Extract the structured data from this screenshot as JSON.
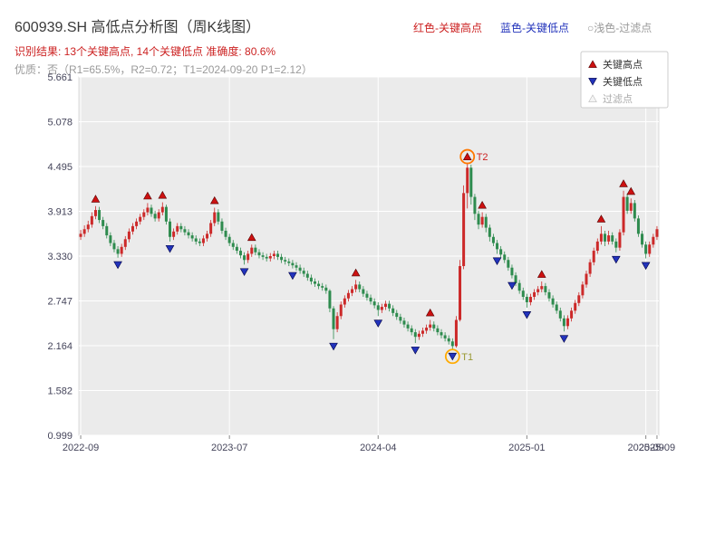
{
  "header": {
    "title": "600939.SH 高低点分析图（周K线图）",
    "subtitle": "识别结果: 13个关键高点, 14个关键低点  准确度: 80.6%",
    "quality_line": "优质：否（R1=65.5%，R2=0.72；T1=2024-09-20 P1=2.12）",
    "legend": {
      "high": "红色-关键高点",
      "low": "蓝色-关键低点",
      "filtered": "○浅色-过滤点"
    }
  },
  "colors": {
    "up_candle": "#cc2929",
    "down_candle": "#2e8b4e",
    "key_high": "#cc1111",
    "key_low": "#2233bb",
    "filtered": "#f5f5f5",
    "plot_bg": "#ebebeb",
    "grid": "#ffffff",
    "axis_text": "#44445a",
    "ring_t1": "#ffaa00",
    "ring_t2": "#ff7700"
  },
  "chart_data": {
    "type": "candlestick",
    "title": "600939.SH 高低点分析图（周K线图）",
    "ylim": [
      0.999,
      5.661
    ],
    "grid": true,
    "y_ticks": [
      "0.999",
      "1.582",
      "2.164",
      "2.747",
      "3.330",
      "3.913",
      "4.495",
      "5.078",
      "5.661"
    ],
    "x_ticks": [
      {
        "week": 0,
        "label": "2022-09"
      },
      {
        "week": 40,
        "label": "2023-07"
      },
      {
        "week": 80,
        "label": "2024-04"
      },
      {
        "week": 120,
        "label": "2025-01"
      },
      {
        "week": 152,
        "label": "2025-09"
      },
      {
        "week": 155,
        "label": "2025-09"
      }
    ],
    "legend_items": [
      {
        "label": "关键高点",
        "type": "high"
      },
      {
        "label": "关键低点",
        "type": "low"
      },
      {
        "label": "过滤点",
        "type": "filtered"
      }
    ],
    "candles": [
      [
        3.58,
        3.67,
        3.54,
        3.62
      ],
      [
        3.62,
        3.73,
        3.58,
        3.68
      ],
      [
        3.68,
        3.79,
        3.64,
        3.74
      ],
      [
        3.74,
        3.9,
        3.7,
        3.85
      ],
      [
        3.85,
        3.98,
        3.81,
        3.93
      ],
      [
        3.93,
        3.97,
        3.76,
        3.8
      ],
      [
        3.8,
        3.84,
        3.68,
        3.72
      ],
      [
        3.72,
        3.76,
        3.56,
        3.6
      ],
      [
        3.6,
        3.64,
        3.46,
        3.5
      ],
      [
        3.5,
        3.54,
        3.38,
        3.42
      ],
      [
        3.42,
        3.46,
        3.31,
        3.36
      ],
      [
        3.36,
        3.49,
        3.32,
        3.45
      ],
      [
        3.45,
        3.59,
        3.41,
        3.55
      ],
      [
        3.55,
        3.69,
        3.51,
        3.65
      ],
      [
        3.65,
        3.76,
        3.61,
        3.72
      ],
      [
        3.72,
        3.82,
        3.68,
        3.78
      ],
      [
        3.78,
        3.88,
        3.74,
        3.84
      ],
      [
        3.84,
        3.94,
        3.8,
        3.9
      ],
      [
        3.9,
        4.02,
        3.86,
        3.96
      ],
      [
        3.96,
        4.0,
        3.84,
        3.88
      ],
      [
        3.88,
        3.92,
        3.78,
        3.82
      ],
      [
        3.82,
        3.94,
        3.78,
        3.9
      ],
      [
        3.9,
        4.03,
        3.86,
        3.97
      ],
      [
        3.97,
        4.0,
        3.74,
        3.78
      ],
      [
        3.78,
        3.82,
        3.52,
        3.58
      ],
      [
        3.58,
        3.69,
        3.54,
        3.65
      ],
      [
        3.65,
        3.76,
        3.61,
        3.72
      ],
      [
        3.72,
        3.76,
        3.64,
        3.68
      ],
      [
        3.68,
        3.72,
        3.6,
        3.64
      ],
      [
        3.64,
        3.68,
        3.56,
        3.6
      ],
      [
        3.6,
        3.64,
        3.52,
        3.56
      ],
      [
        3.56,
        3.6,
        3.48,
        3.52
      ],
      [
        3.52,
        3.56,
        3.46,
        3.5
      ],
      [
        3.5,
        3.6,
        3.46,
        3.56
      ],
      [
        3.56,
        3.66,
        3.52,
        3.62
      ],
      [
        3.62,
        3.8,
        3.58,
        3.76
      ],
      [
        3.76,
        3.96,
        3.72,
        3.9
      ],
      [
        3.9,
        3.94,
        3.74,
        3.78
      ],
      [
        3.78,
        3.82,
        3.62,
        3.66
      ],
      [
        3.66,
        3.7,
        3.54,
        3.58
      ],
      [
        3.58,
        3.62,
        3.46,
        3.5
      ],
      [
        3.5,
        3.54,
        3.41,
        3.45
      ],
      [
        3.45,
        3.49,
        3.36,
        3.4
      ],
      [
        3.4,
        3.44,
        3.3,
        3.34
      ],
      [
        3.34,
        3.38,
        3.22,
        3.28
      ],
      [
        3.28,
        3.4,
        3.24,
        3.36
      ],
      [
        3.36,
        3.48,
        3.32,
        3.44
      ],
      [
        3.44,
        3.48,
        3.34,
        3.38
      ],
      [
        3.38,
        3.42,
        3.3,
        3.34
      ],
      [
        3.34,
        3.38,
        3.28,
        3.32
      ],
      [
        3.32,
        3.36,
        3.26,
        3.3
      ],
      [
        3.3,
        3.37,
        3.26,
        3.33
      ],
      [
        3.33,
        3.4,
        3.29,
        3.36
      ],
      [
        3.36,
        3.4,
        3.28,
        3.32
      ],
      [
        3.32,
        3.36,
        3.24,
        3.28
      ],
      [
        3.28,
        3.32,
        3.22,
        3.26
      ],
      [
        3.26,
        3.3,
        3.2,
        3.24
      ],
      [
        3.24,
        3.28,
        3.17,
        3.21
      ],
      [
        3.21,
        3.25,
        3.14,
        3.18
      ],
      [
        3.18,
        3.22,
        3.1,
        3.14
      ],
      [
        3.14,
        3.18,
        3.06,
        3.1
      ],
      [
        3.1,
        3.14,
        3.01,
        3.05
      ],
      [
        3.05,
        3.09,
        2.96,
        3.0
      ],
      [
        3.0,
        3.04,
        2.93,
        2.97
      ],
      [
        2.97,
        3.01,
        2.9,
        2.94
      ],
      [
        2.94,
        2.98,
        2.88,
        2.92
      ],
      [
        2.92,
        2.96,
        2.84,
        2.88
      ],
      [
        2.88,
        2.9,
        2.6,
        2.65
      ],
      [
        2.65,
        2.68,
        2.25,
        2.38
      ],
      [
        2.38,
        2.6,
        2.34,
        2.55
      ],
      [
        2.55,
        2.74,
        2.51,
        2.7
      ],
      [
        2.7,
        2.82,
        2.66,
        2.78
      ],
      [
        2.78,
        2.89,
        2.74,
        2.85
      ],
      [
        2.85,
        2.94,
        2.81,
        2.9
      ],
      [
        2.9,
        3.02,
        2.86,
        2.96
      ],
      [
        2.96,
        3.0,
        2.86,
        2.9
      ],
      [
        2.9,
        2.94,
        2.8,
        2.84
      ],
      [
        2.84,
        2.88,
        2.75,
        2.79
      ],
      [
        2.79,
        2.83,
        2.7,
        2.74
      ],
      [
        2.74,
        2.78,
        2.65,
        2.69
      ],
      [
        2.69,
        2.73,
        2.55,
        2.63
      ],
      [
        2.63,
        2.71,
        2.59,
        2.67
      ],
      [
        2.67,
        2.75,
        2.63,
        2.71
      ],
      [
        2.71,
        2.75,
        2.61,
        2.65
      ],
      [
        2.65,
        2.69,
        2.55,
        2.59
      ],
      [
        2.59,
        2.63,
        2.5,
        2.54
      ],
      [
        2.54,
        2.58,
        2.45,
        2.49
      ],
      [
        2.49,
        2.53,
        2.4,
        2.44
      ],
      [
        2.44,
        2.48,
        2.35,
        2.39
      ],
      [
        2.39,
        2.43,
        2.3,
        2.34
      ],
      [
        2.34,
        2.38,
        2.2,
        2.28
      ],
      [
        2.28,
        2.36,
        2.24,
        2.32
      ],
      [
        2.32,
        2.4,
        2.28,
        2.36
      ],
      [
        2.36,
        2.44,
        2.32,
        2.4
      ],
      [
        2.4,
        2.5,
        2.36,
        2.44
      ],
      [
        2.44,
        2.48,
        2.35,
        2.39
      ],
      [
        2.39,
        2.43,
        2.3,
        2.34
      ],
      [
        2.34,
        2.38,
        2.26,
        2.3
      ],
      [
        2.3,
        2.34,
        2.22,
        2.26
      ],
      [
        2.26,
        2.3,
        2.18,
        2.22
      ],
      [
        2.22,
        2.26,
        2.12,
        2.16
      ],
      [
        2.16,
        2.55,
        2.14,
        2.5
      ],
      [
        2.5,
        3.28,
        2.48,
        3.2
      ],
      [
        3.2,
        4.25,
        3.16,
        4.15
      ],
      [
        4.15,
        4.53,
        3.95,
        4.48
      ],
      [
        4.48,
        4.52,
        4.0,
        4.1
      ],
      [
        4.1,
        4.14,
        3.8,
        3.88
      ],
      [
        3.88,
        3.92,
        3.68,
        3.74
      ],
      [
        3.74,
        3.9,
        3.7,
        3.84
      ],
      [
        3.84,
        3.88,
        3.64,
        3.7
      ],
      [
        3.7,
        3.74,
        3.52,
        3.58
      ],
      [
        3.58,
        3.62,
        3.46,
        3.5
      ],
      [
        3.5,
        3.54,
        3.36,
        3.42
      ],
      [
        3.42,
        3.46,
        3.31,
        3.35
      ],
      [
        3.35,
        3.39,
        3.24,
        3.28
      ],
      [
        3.28,
        3.32,
        3.14,
        3.18
      ],
      [
        3.18,
        3.22,
        3.04,
        3.08
      ],
      [
        3.08,
        3.12,
        2.94,
        2.98
      ],
      [
        2.98,
        3.02,
        2.84,
        2.88
      ],
      [
        2.88,
        2.92,
        2.76,
        2.8
      ],
      [
        2.8,
        2.84,
        2.66,
        2.73
      ],
      [
        2.73,
        2.84,
        2.69,
        2.8
      ],
      [
        2.8,
        2.9,
        2.76,
        2.86
      ],
      [
        2.86,
        2.94,
        2.82,
        2.9
      ],
      [
        2.9,
        3.0,
        2.86,
        2.94
      ],
      [
        2.94,
        2.98,
        2.82,
        2.86
      ],
      [
        2.86,
        2.9,
        2.74,
        2.78
      ],
      [
        2.78,
        2.82,
        2.66,
        2.7
      ],
      [
        2.7,
        2.74,
        2.58,
        2.62
      ],
      [
        2.62,
        2.66,
        2.48,
        2.52
      ],
      [
        2.52,
        2.56,
        2.35,
        2.42
      ],
      [
        2.42,
        2.56,
        2.38,
        2.52
      ],
      [
        2.52,
        2.66,
        2.48,
        2.62
      ],
      [
        2.62,
        2.76,
        2.58,
        2.72
      ],
      [
        2.72,
        2.86,
        2.68,
        2.82
      ],
      [
        2.82,
        3.0,
        2.78,
        2.96
      ],
      [
        2.96,
        3.14,
        2.92,
        3.1
      ],
      [
        3.1,
        3.29,
        3.06,
        3.25
      ],
      [
        3.25,
        3.44,
        3.21,
        3.4
      ],
      [
        3.4,
        3.56,
        3.36,
        3.52
      ],
      [
        3.52,
        3.72,
        3.48,
        3.62
      ],
      [
        3.62,
        3.66,
        3.46,
        3.52
      ],
      [
        3.52,
        3.66,
        3.48,
        3.6
      ],
      [
        3.6,
        3.64,
        3.48,
        3.52
      ],
      [
        3.52,
        3.56,
        3.38,
        3.44
      ],
      [
        3.44,
        3.68,
        3.4,
        3.64
      ],
      [
        3.64,
        4.18,
        3.6,
        4.1
      ],
      [
        4.1,
        4.14,
        3.88,
        3.92
      ],
      [
        3.92,
        4.08,
        3.88,
        4.02
      ],
      [
        4.02,
        4.06,
        3.78,
        3.82
      ],
      [
        3.82,
        3.86,
        3.58,
        3.62
      ],
      [
        3.62,
        3.66,
        3.44,
        3.48
      ],
      [
        3.48,
        3.52,
        3.3,
        3.36
      ],
      [
        3.36,
        3.52,
        3.32,
        3.48
      ],
      [
        3.48,
        3.62,
        3.44,
        3.58
      ],
      [
        3.58,
        3.72,
        3.54,
        3.68
      ]
    ],
    "key_highs": [
      {
        "week": 4,
        "price": 3.98
      },
      {
        "week": 18,
        "price": 4.02
      },
      {
        "week": 22,
        "price": 4.03
      },
      {
        "week": 36,
        "price": 3.96
      },
      {
        "week": 46,
        "price": 3.48
      },
      {
        "week": 74,
        "price": 3.02
      },
      {
        "week": 94,
        "price": 2.5
      },
      {
        "week": 104,
        "price": 4.53
      },
      {
        "week": 108,
        "price": 3.9
      },
      {
        "week": 124,
        "price": 3.0
      },
      {
        "week": 140,
        "price": 3.72
      },
      {
        "week": 146,
        "price": 4.18
      },
      {
        "week": 148,
        "price": 4.08
      }
    ],
    "key_lows": [
      {
        "week": 10,
        "price": 3.31
      },
      {
        "week": 24,
        "price": 3.52
      },
      {
        "week": 44,
        "price": 3.22
      },
      {
        "week": 57,
        "price": 3.17
      },
      {
        "week": 68,
        "price": 2.25
      },
      {
        "week": 80,
        "price": 2.55
      },
      {
        "week": 90,
        "price": 2.2
      },
      {
        "week": 100,
        "price": 2.12
      },
      {
        "week": 112,
        "price": 3.36
      },
      {
        "week": 116,
        "price": 3.04
      },
      {
        "week": 120,
        "price": 2.66
      },
      {
        "week": 130,
        "price": 2.35
      },
      {
        "week": 144,
        "price": 3.38
      },
      {
        "week": 152,
        "price": 3.3
      }
    ],
    "filtered_points": [],
    "annotations": [
      {
        "label": "T2",
        "week": 104,
        "price": 4.53,
        "point_type": "high",
        "label_color": "#cc2222",
        "ring_color": "#ff7700"
      },
      {
        "label": "T1",
        "week": 100,
        "price": 2.12,
        "point_type": "low",
        "label_color": "#999933",
        "ring_color": "#ffaa00"
      }
    ]
  }
}
